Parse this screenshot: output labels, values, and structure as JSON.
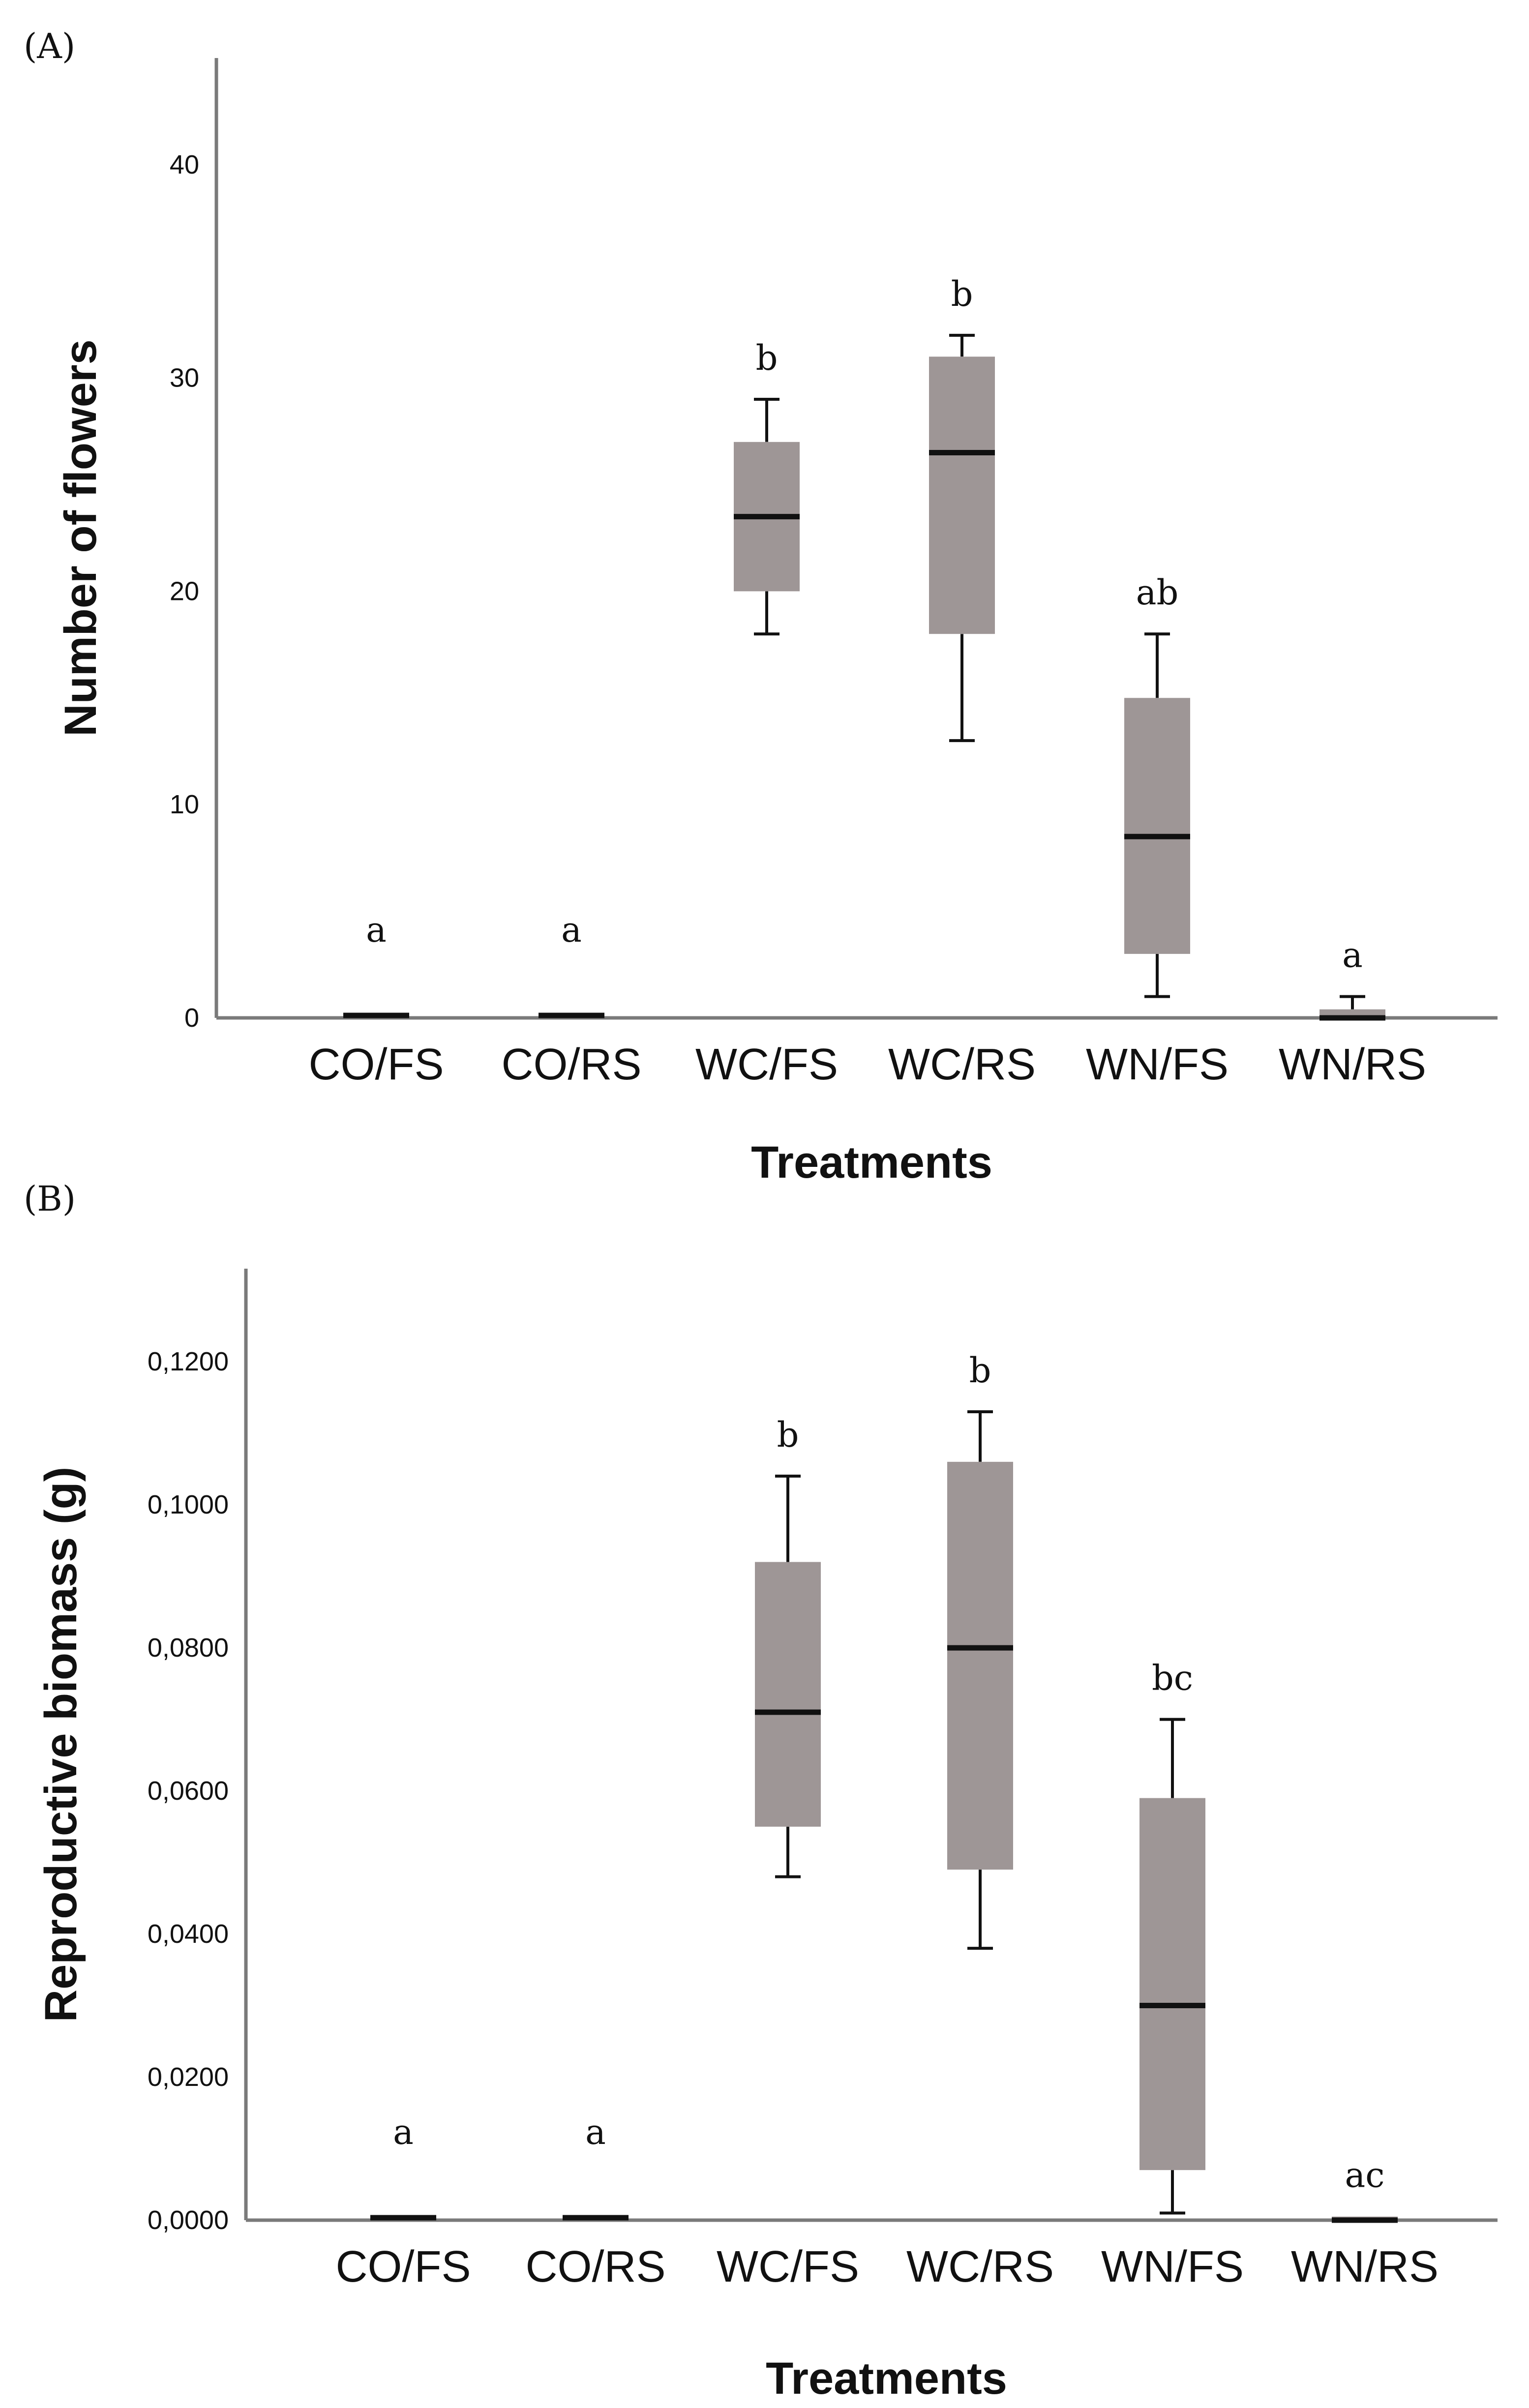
{
  "chart_data": [
    {
      "type": "box",
      "panel_label": "(A)",
      "title": "",
      "xlabel": "Treatments",
      "ylabel": "Number of flowers",
      "ylim": [
        0,
        45
      ],
      "yticks": [
        0,
        10,
        20,
        30,
        40
      ],
      "ytick_labels": [
        "0",
        "10",
        "20",
        "30",
        "40"
      ],
      "categories": [
        "CO/FS",
        "CO/RS",
        "WC/FS",
        "WC/RS",
        "WN/FS",
        "WN/RS"
      ],
      "boxes": [
        {
          "min": 0,
          "q1": 0,
          "median": 0,
          "q3": 0,
          "max": 0
        },
        {
          "min": 0,
          "q1": 0,
          "median": 0,
          "q3": 0,
          "max": 0
        },
        {
          "min": 18,
          "q1": 20,
          "median": 23.5,
          "q3": 27,
          "max": 29
        },
        {
          "min": 13,
          "q1": 18,
          "median": 26.5,
          "q3": 31,
          "max": 32
        },
        {
          "min": 1,
          "q1": 3,
          "median": 8.5,
          "q3": 15,
          "max": 18
        },
        {
          "min": 0,
          "q1": 0,
          "median": 0,
          "q3": 0.4,
          "max": 1
        }
      ],
      "significance": [
        "a",
        "a",
        "b",
        "b",
        "ab",
        "a"
      ]
    },
    {
      "type": "box",
      "panel_label": "(B)",
      "title": "",
      "xlabel": "Treatments",
      "ylabel": "Reproductive biomass (g)",
      "ylim": [
        0,
        0.133
      ],
      "yticks": [
        0,
        0.02,
        0.04,
        0.06,
        0.08,
        0.1,
        0.12
      ],
      "ytick_labels": [
        "0,0000",
        "0,0200",
        "0,0400",
        "0,0600",
        "0,0800",
        "0,1000",
        "0,1200"
      ],
      "categories": [
        "CO/FS",
        "CO/RS",
        "WC/FS",
        "WC/RS",
        "WN/FS",
        "WN/RS"
      ],
      "boxes": [
        {
          "min": 0,
          "q1": 0,
          "median": 0,
          "q3": 0,
          "max": 0
        },
        {
          "min": 0,
          "q1": 0,
          "median": 0,
          "q3": 0,
          "max": 0
        },
        {
          "min": 0.048,
          "q1": 0.055,
          "median": 0.071,
          "q3": 0.092,
          "max": 0.104
        },
        {
          "min": 0.038,
          "q1": 0.049,
          "median": 0.08,
          "q3": 0.106,
          "max": 0.113
        },
        {
          "min": 0.001,
          "q1": 0.007,
          "median": 0.03,
          "q3": 0.059,
          "max": 0.07
        },
        {
          "min": 0,
          "q1": 0,
          "median": 0,
          "q3": 0.0005,
          "max": 0.0005
        }
      ],
      "significance": [
        "a",
        "a",
        "b",
        "b",
        "bc",
        "ac"
      ]
    }
  ]
}
